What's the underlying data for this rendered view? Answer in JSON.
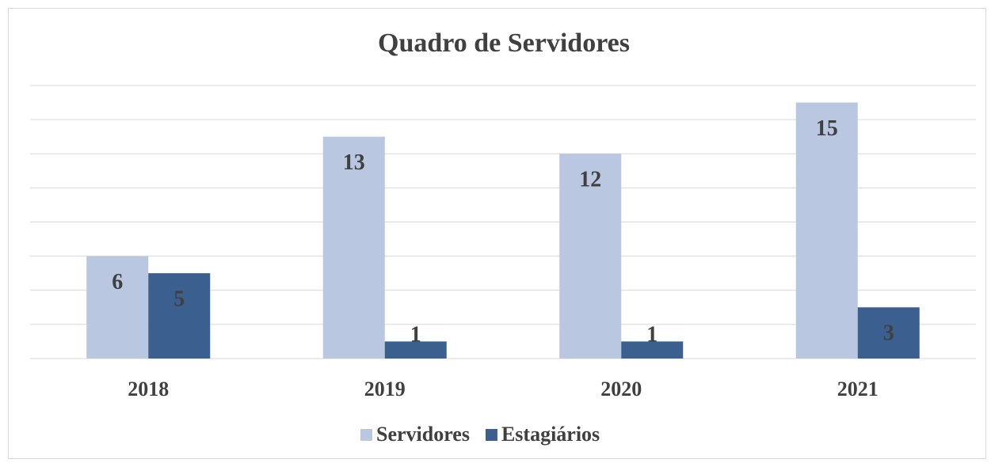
{
  "chart_data": {
    "type": "bar",
    "title": "Quadro de Servidores",
    "categories": [
      "2018",
      "2019",
      "2020",
      "2021"
    ],
    "series": [
      {
        "name": "Servidores",
        "color": "#bac7e1",
        "values": [
          6,
          13,
          12,
          15
        ]
      },
      {
        "name": "Estagiários",
        "color": "#3b5f8e",
        "values": [
          5,
          1,
          1,
          3
        ]
      }
    ],
    "ylim": [
      0,
      16
    ],
    "yticks": [
      0,
      2,
      4,
      6,
      8,
      10,
      12,
      14,
      16
    ],
    "grid": true,
    "legend": "bottom"
  }
}
